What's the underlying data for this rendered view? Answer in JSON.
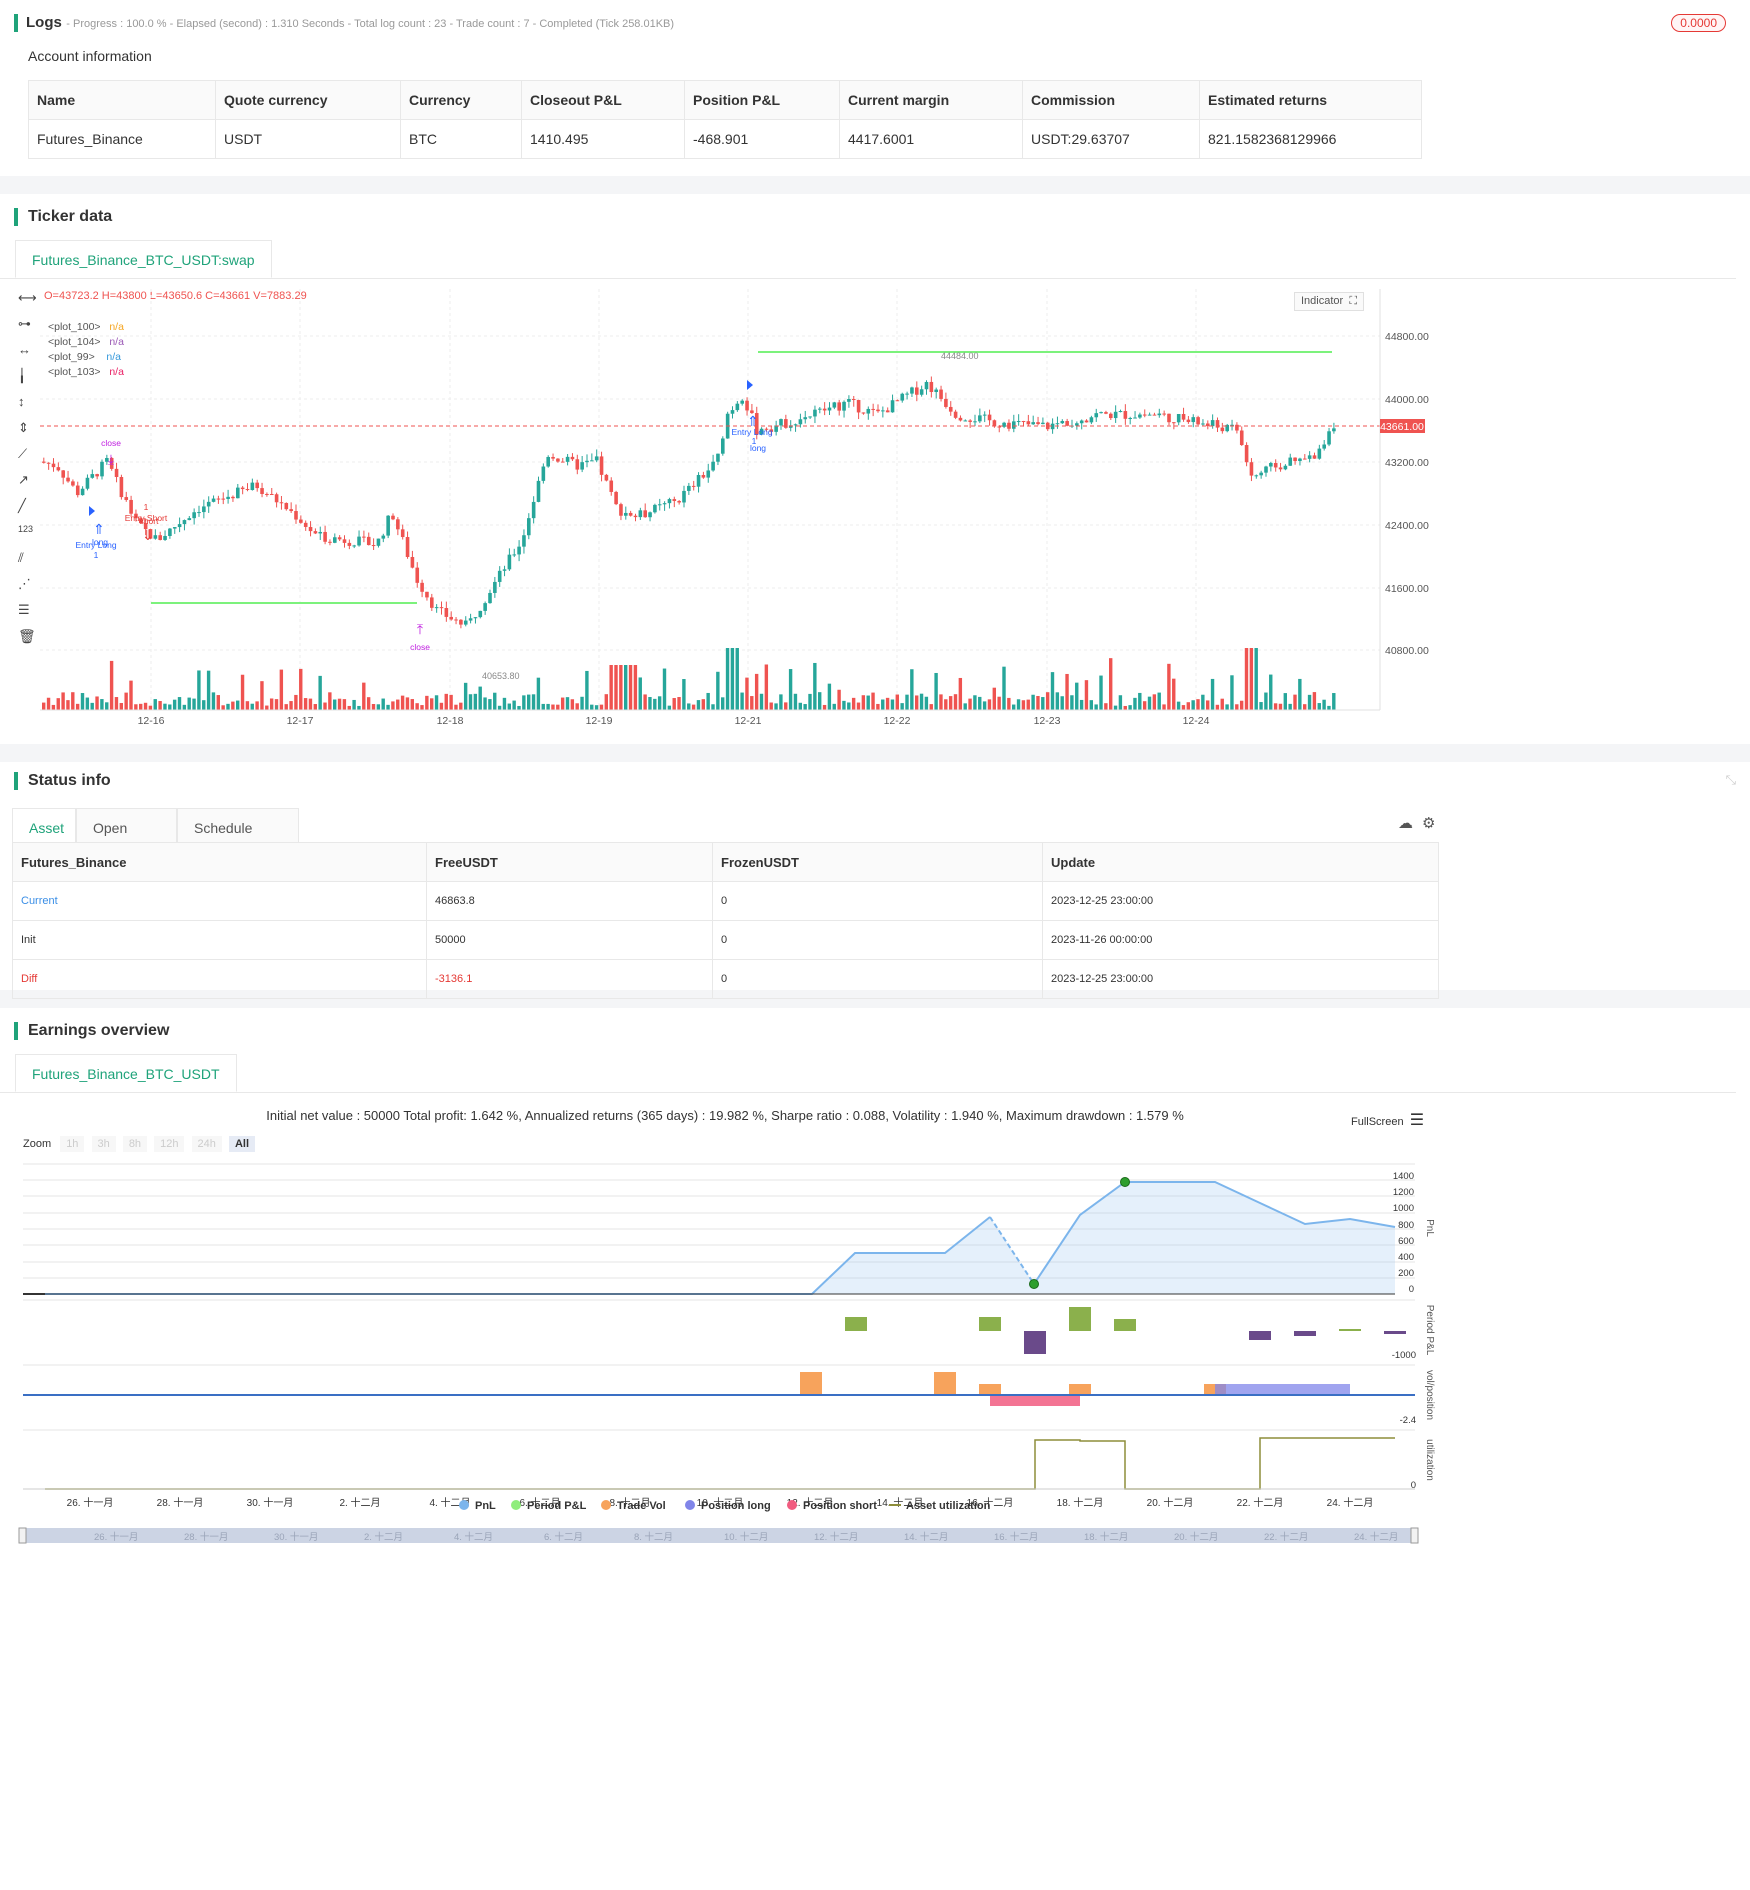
{
  "logs": {
    "title": "Logs",
    "summary": "- Progress : 100.0 % - Elapsed (second) : 1.310 Seconds - Total log count : 23 - Trade count : 7 - Completed (Tick 258.01KB)",
    "badge": "0.0000"
  },
  "account": {
    "title": "Account information",
    "headers": [
      "Name",
      "Quote currency",
      "Currency",
      "Closeout P&L",
      "Position P&L",
      "Current margin",
      "Commission",
      "Estimated returns"
    ],
    "row": [
      "Futures_Binance",
      "USDT",
      "BTC",
      "1410.495",
      "-468.901",
      "4417.6001",
      "USDT:29.63707",
      "821.1582368129966"
    ]
  },
  "ticker": {
    "title": "Ticker data",
    "tab": "Futures_Binance_BTC_USDT:swap",
    "ohlc": "O=43723.2 H=43800 L=43650.6 C=43661 V=7883.29",
    "indicator_btn": "Indicator",
    "legend": [
      {
        "name": "<plot_100>",
        "value": "n/a",
        "color": "#f5a623"
      },
      {
        "name": "<plot_104>",
        "value": "n/a",
        "color": "#9b59b6"
      },
      {
        "name": "<plot_99>",
        "value": "n/a",
        "color": "#3498db"
      },
      {
        "name": "<plot_103>",
        "value": "n/a",
        "color": "#e91e63"
      }
    ],
    "price_ticks": [
      "44800.00",
      "44000.00",
      "43200.00",
      "42400.00",
      "41600.00",
      "40800.00"
    ],
    "current_price": "43661.00",
    "high_label": "44484.00",
    "low_label": "40653.80",
    "dates": [
      "12-16",
      "12-17",
      "12-18",
      "12-19",
      "12-21",
      "12-22",
      "12-23",
      "12-24"
    ],
    "annotations": {
      "close1": "close",
      "close2": "close",
      "entry_long": "Entry Long",
      "long": "long",
      "one": "1",
      "entry_short": "Entry Short",
      "short": "short",
      "entry_long2": "Entry Long",
      "long2": "long"
    }
  },
  "status": {
    "title": "Status info",
    "tabs": [
      "Asset",
      "Open orders",
      "Schedule orders"
    ],
    "headers": [
      "Futures_Binance",
      "FreeUSDT",
      "FrozenUSDT",
      "Update"
    ],
    "rows": [
      [
        "Current",
        "46863.8",
        "0",
        "2023-12-25 23:00:00"
      ],
      [
        "Init",
        "50000",
        "0",
        "2023-11-26 00:00:00"
      ],
      [
        "Diff",
        "-3136.1",
        "0",
        "2023-12-25 23:00:00"
      ]
    ]
  },
  "earnings": {
    "title": "Earnings overview",
    "tab": "Futures_Binance_BTC_USDT",
    "summary": "Initial net value : 50000 Total profit: 1.642 %, Annualized returns (365 days) : 19.982 %, Sharpe ratio : 0.088, Volatility : 1.940 %, Maximum drawdown : 1.579 %",
    "fullscreen": "FullScreen",
    "zoom_label": "Zoom",
    "zoom_buttons": [
      "1h",
      "3h",
      "8h",
      "12h",
      "24h",
      "All"
    ],
    "pnl_ticks": [
      "1400",
      "1200",
      "1000",
      "800",
      "600",
      "400",
      "200",
      "0"
    ],
    "axis_titles": [
      "PnL",
      "Period P&L",
      "vol/position",
      "utilization"
    ],
    "period_tick": "-1000",
    "vol_tick": "-2.4",
    "util_tick": "0",
    "x_dates": [
      "26. 十一月",
      "28. 十一月",
      "30. 十一月",
      "2. 十二月",
      "4. 十二月",
      "6. 十二月",
      "8. 十二月",
      "10. 十二月",
      "12. 十二月",
      "14. 十二月",
      "16. 十二月",
      "18. 十二月",
      "20. 十二月",
      "22. 十二月",
      "24. 十二月"
    ],
    "legend": [
      {
        "name": "PnL",
        "color": "#7cb5ec"
      },
      {
        "name": "Period P&L",
        "color": "#90ed7d"
      },
      {
        "name": "Trade Vol",
        "color": "#f7a35c"
      },
      {
        "name": "Position long",
        "color": "#8085e9"
      },
      {
        "name": "Position short",
        "color": "#f15c80"
      },
      {
        "name": "Asset utilization",
        "color": "#8d8d3a"
      }
    ]
  },
  "colors": {
    "up": "#26a69a",
    "down": "#ef5350",
    "accent": "#1fa37a"
  }
}
